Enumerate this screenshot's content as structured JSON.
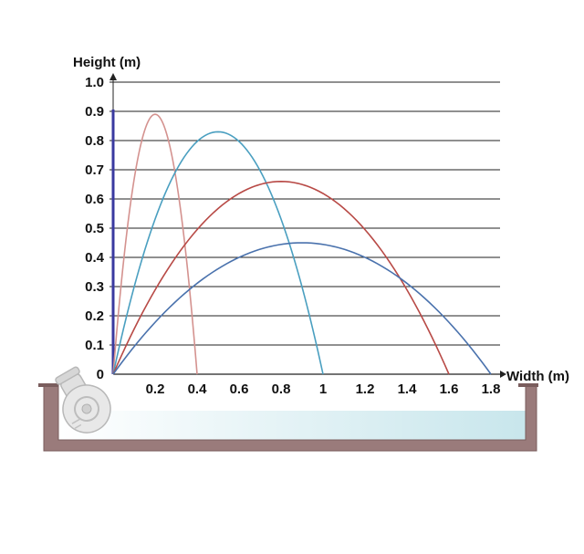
{
  "chart_data": {
    "type": "line",
    "title": "",
    "xlabel": "Width (m)",
    "ylabel": "Height (m)",
    "xlim": [
      0,
      1.8
    ],
    "ylim": [
      0,
      1.0
    ],
    "x_ticks": [
      "0.2",
      "0.4",
      "0.6",
      "0.8",
      "1",
      "1.2",
      "1.4",
      "1.6",
      "1.8"
    ],
    "y_ticks": [
      "0",
      "0.1",
      "0.2",
      "0.3",
      "0.4",
      "0.5",
      "0.6",
      "0.7",
      "0.8",
      "0.9",
      "1.0"
    ],
    "grid": "horizontal",
    "series": [
      {
        "range": 0.4,
        "peak": 0.89,
        "color": "#d4928f",
        "x": [
          0,
          0.05,
          0.1,
          0.15,
          0.2,
          0.25,
          0.3,
          0.35,
          0.4
        ],
        "y": [
          0,
          0.39,
          0.67,
          0.83,
          0.89,
          0.83,
          0.67,
          0.39,
          0
        ]
      },
      {
        "range": 1.0,
        "peak": 0.83,
        "color": "#4a9fc0",
        "x": [
          0,
          0.1,
          0.2,
          0.3,
          0.4,
          0.5,
          0.6,
          0.7,
          0.8,
          0.9,
          1.0
        ],
        "y": [
          0,
          0.3,
          0.53,
          0.7,
          0.8,
          0.83,
          0.8,
          0.7,
          0.53,
          0.3,
          0
        ]
      },
      {
        "range": 1.6,
        "peak": 0.66,
        "color": "#b84a46",
        "x": [
          0,
          0.2,
          0.4,
          0.6,
          0.8,
          1.0,
          1.2,
          1.4,
          1.6
        ],
        "y": [
          0,
          0.29,
          0.5,
          0.62,
          0.66,
          0.62,
          0.5,
          0.29,
          0
        ]
      },
      {
        "range": 1.8,
        "peak": 0.45,
        "color": "#4a72ad",
        "x": [
          0,
          0.3,
          0.6,
          0.9,
          1.2,
          1.5,
          1.8
        ],
        "y": [
          0,
          0.25,
          0.4,
          0.45,
          0.4,
          0.25,
          0
        ]
      }
    ]
  },
  "colors": {
    "basin_wall": "#9a7b7b",
    "water": "#c8e6ec",
    "gridline": "#222222",
    "y_axis": "#3a3aa0"
  }
}
